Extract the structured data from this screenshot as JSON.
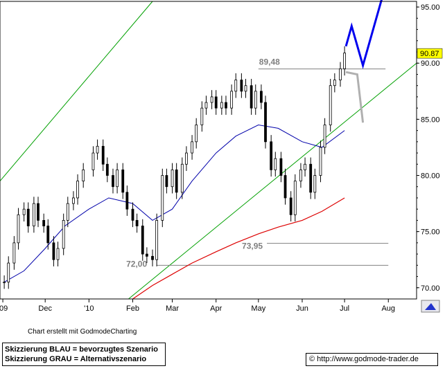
{
  "chart_data": {
    "type": "candlestick",
    "y_ticks": [
      "70.00",
      "75.00",
      "80.00",
      "85.00",
      "90.00",
      "95.00"
    ],
    "y_tick_values": [
      70,
      75,
      80,
      85,
      90,
      95
    ],
    "ylim": [
      69.0,
      95.5
    ],
    "x_tick_labels": [
      "'09",
      "Dec",
      "'10",
      "Feb",
      "Mar",
      "Apr",
      "May",
      "Jun",
      "Jul",
      "Aug"
    ],
    "x_tick_dates": [
      "2009-11-01",
      "2009-12-01",
      "2010-01-01",
      "2010-02-01",
      "2010-03-01",
      "2010-04-01",
      "2010-05-01",
      "2010-06-01",
      "2010-07-01",
      "2010-08-01"
    ],
    "xlim": [
      "2009-10-30",
      "2010-08-21"
    ],
    "last_price": "90.87",
    "price_series": [
      [
        "2009-11-02",
        70.5
      ],
      [
        "2009-11-05",
        72.2
      ],
      [
        "2009-11-09",
        74.0
      ],
      [
        "2009-11-12",
        76.5
      ],
      [
        "2009-11-16",
        77.0
      ],
      [
        "2009-11-19",
        75.5
      ],
      [
        "2009-11-23",
        77.5
      ],
      [
        "2009-11-26",
        76.0
      ],
      [
        "2009-11-30",
        75.5
      ],
      [
        "2009-12-03",
        74.0
      ],
      [
        "2009-12-07",
        72.5
      ],
      [
        "2009-12-10",
        73.5
      ],
      [
        "2009-12-14",
        76.0
      ],
      [
        "2009-12-17",
        77.5
      ],
      [
        "2009-12-21",
        78.0
      ],
      [
        "2009-12-24",
        79.5
      ],
      [
        "2009-12-28",
        80.5
      ],
      [
        "2010-01-04",
        82.0
      ],
      [
        "2010-01-07",
        82.6
      ],
      [
        "2010-01-11",
        81.0
      ],
      [
        "2010-01-14",
        80.0
      ],
      [
        "2010-01-18",
        79.0
      ],
      [
        "2010-01-21",
        80.5
      ],
      [
        "2010-01-25",
        78.5
      ],
      [
        "2010-01-28",
        77.0
      ],
      [
        "2010-02-01",
        76.0
      ],
      [
        "2010-02-04",
        75.5
      ],
      [
        "2010-02-08",
        73.0
      ],
      [
        "2010-02-11",
        72.8
      ],
      [
        "2010-02-15",
        72.5
      ],
      [
        "2010-02-18",
        76.0
      ],
      [
        "2010-02-22",
        80.0
      ],
      [
        "2010-02-25",
        79.0
      ],
      [
        "2010-03-01",
        80.5
      ],
      [
        "2010-03-04",
        78.5
      ],
      [
        "2010-03-08",
        81.0
      ],
      [
        "2010-03-11",
        82.0
      ],
      [
        "2010-03-15",
        83.0
      ],
      [
        "2010-03-18",
        84.5
      ],
      [
        "2010-03-22",
        86.0
      ],
      [
        "2010-03-25",
        86.5
      ],
      [
        "2010-03-29",
        87.0
      ],
      [
        "2010-04-01",
        86.0
      ],
      [
        "2010-04-05",
        86.5
      ],
      [
        "2010-04-08",
        86.0
      ],
      [
        "2010-04-12",
        87.5
      ],
      [
        "2010-04-15",
        88.5
      ],
      [
        "2010-04-19",
        87.5
      ],
      [
        "2010-04-22",
        88.0
      ],
      [
        "2010-04-26",
        86.0
      ],
      [
        "2010-04-29",
        87.5
      ],
      [
        "2010-05-03",
        86.5
      ],
      [
        "2010-05-06",
        83.0
      ],
      [
        "2010-05-10",
        80.5
      ],
      [
        "2010-05-13",
        81.5
      ],
      [
        "2010-05-17",
        80.0
      ],
      [
        "2010-05-20",
        78.0
      ],
      [
        "2010-05-24",
        76.5
      ],
      [
        "2010-05-27",
        79.5
      ],
      [
        "2010-05-31",
        80.5
      ],
      [
        "2010-06-03",
        81.0
      ],
      [
        "2010-06-07",
        78.5
      ],
      [
        "2010-06-10",
        80.0
      ],
      [
        "2010-06-14",
        82.5
      ],
      [
        "2010-06-17",
        84.5
      ],
      [
        "2010-06-21",
        88.0
      ],
      [
        "2010-06-24",
        88.5
      ],
      [
        "2010-06-28",
        89.5
      ],
      [
        "2010-07-01",
        90.9
      ]
    ],
    "ma_blue": [
      [
        "2009-11-02",
        70.5
      ],
      [
        "2009-11-16",
        71.5
      ],
      [
        "2009-12-01",
        73.5
      ],
      [
        "2009-12-15",
        75.5
      ],
      [
        "2010-01-01",
        77.0
      ],
      [
        "2010-01-15",
        78.0
      ],
      [
        "2010-02-01",
        77.5
      ],
      [
        "2010-02-15",
        76.0
      ],
      [
        "2010-03-01",
        77.0
      ],
      [
        "2010-03-15",
        79.5
      ],
      [
        "2010-04-01",
        82.0
      ],
      [
        "2010-04-15",
        83.5
      ],
      [
        "2010-05-01",
        84.5
      ],
      [
        "2010-05-15",
        84.2
      ],
      [
        "2010-06-01",
        83.0
      ],
      [
        "2010-06-15",
        82.5
      ],
      [
        "2010-07-01",
        84.0
      ]
    ],
    "ma_red": [
      [
        "2010-02-01",
        69.0
      ],
      [
        "2010-02-15",
        70.2
      ],
      [
        "2010-03-01",
        71.2
      ],
      [
        "2010-03-15",
        72.2
      ],
      [
        "2010-04-01",
        73.2
      ],
      [
        "2010-04-15",
        74.0
      ],
      [
        "2010-05-01",
        74.8
      ],
      [
        "2010-05-15",
        75.4
      ],
      [
        "2010-06-01",
        76.0
      ],
      [
        "2010-06-15",
        76.8
      ],
      [
        "2010-07-01",
        78.0
      ]
    ],
    "channel_upper": [
      [
        "2009-10-30",
        79.5
      ],
      [
        "2010-02-15",
        95.5
      ]
    ],
    "channel_lower": [
      [
        "2010-01-29",
        69.0
      ],
      [
        "2010-08-21",
        90.0
      ]
    ],
    "scenario_blue": [
      [
        "2010-07-02",
        91.5
      ],
      [
        "2010-07-06",
        93.3
      ],
      [
        "2010-07-14",
        89.8
      ],
      [
        "2010-07-28",
        96.0
      ]
    ],
    "scenario_grey": [
      [
        "2010-07-02",
        89.2
      ],
      [
        "2010-07-10",
        89.0
      ],
      [
        "2010-07-14",
        84.7
      ]
    ],
    "levels": [
      {
        "label": "89,48",
        "value": 89.48,
        "from": "2010-05-01",
        "to": "2010-07-30"
      },
      {
        "label": "73,95",
        "value": 73.95,
        "from": "2010-05-07",
        "to": "2010-08-01"
      },
      {
        "label": "72,00",
        "value": 72.0,
        "from": "2010-02-18",
        "to": "2010-08-01"
      }
    ]
  },
  "credit": "Chart erstellt mit GodmodeCharting",
  "legend": {
    "blue": "Skizzierung BLAU = bevorzugtes Szenario",
    "grey": "Skizzierung GRAU = Alternativszenario"
  },
  "url": "© http://www.godmode-trader.de",
  "colors": {
    "ma_blue": "#0000aa",
    "ma_red": "#dd0000",
    "channel": "#00a000",
    "scenario_blue": "#0000ee",
    "scenario_grey": "#b0b0b0",
    "last_price_bg": "#ffff00"
  }
}
